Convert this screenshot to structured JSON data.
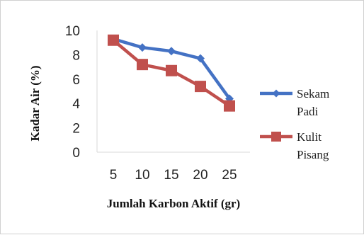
{
  "chart_data": {
    "type": "line",
    "title": "",
    "xlabel": "Jumlah Karbon Aktif (gr)",
    "ylabel": "Kadar Air (%)",
    "categories": [
      "5",
      "10",
      "15",
      "20",
      "25"
    ],
    "y_ticks": [
      "0",
      "2",
      "4",
      "6",
      "8",
      "10"
    ],
    "ylim": [
      0,
      10
    ],
    "grid": false,
    "legend_position": "right",
    "series": [
      {
        "name_lines": [
          "Sekam",
          "Padi"
        ],
        "values": [
          9.3,
          8.6,
          8.3,
          7.7,
          4.4
        ],
        "color": "#4472C4",
        "marker": "diamond"
      },
      {
        "name_lines": [
          "Kulit",
          "Pisang"
        ],
        "values": [
          9.2,
          7.2,
          6.7,
          5.4,
          3.8
        ],
        "color": "#C0504D",
        "marker": "square"
      }
    ]
  }
}
